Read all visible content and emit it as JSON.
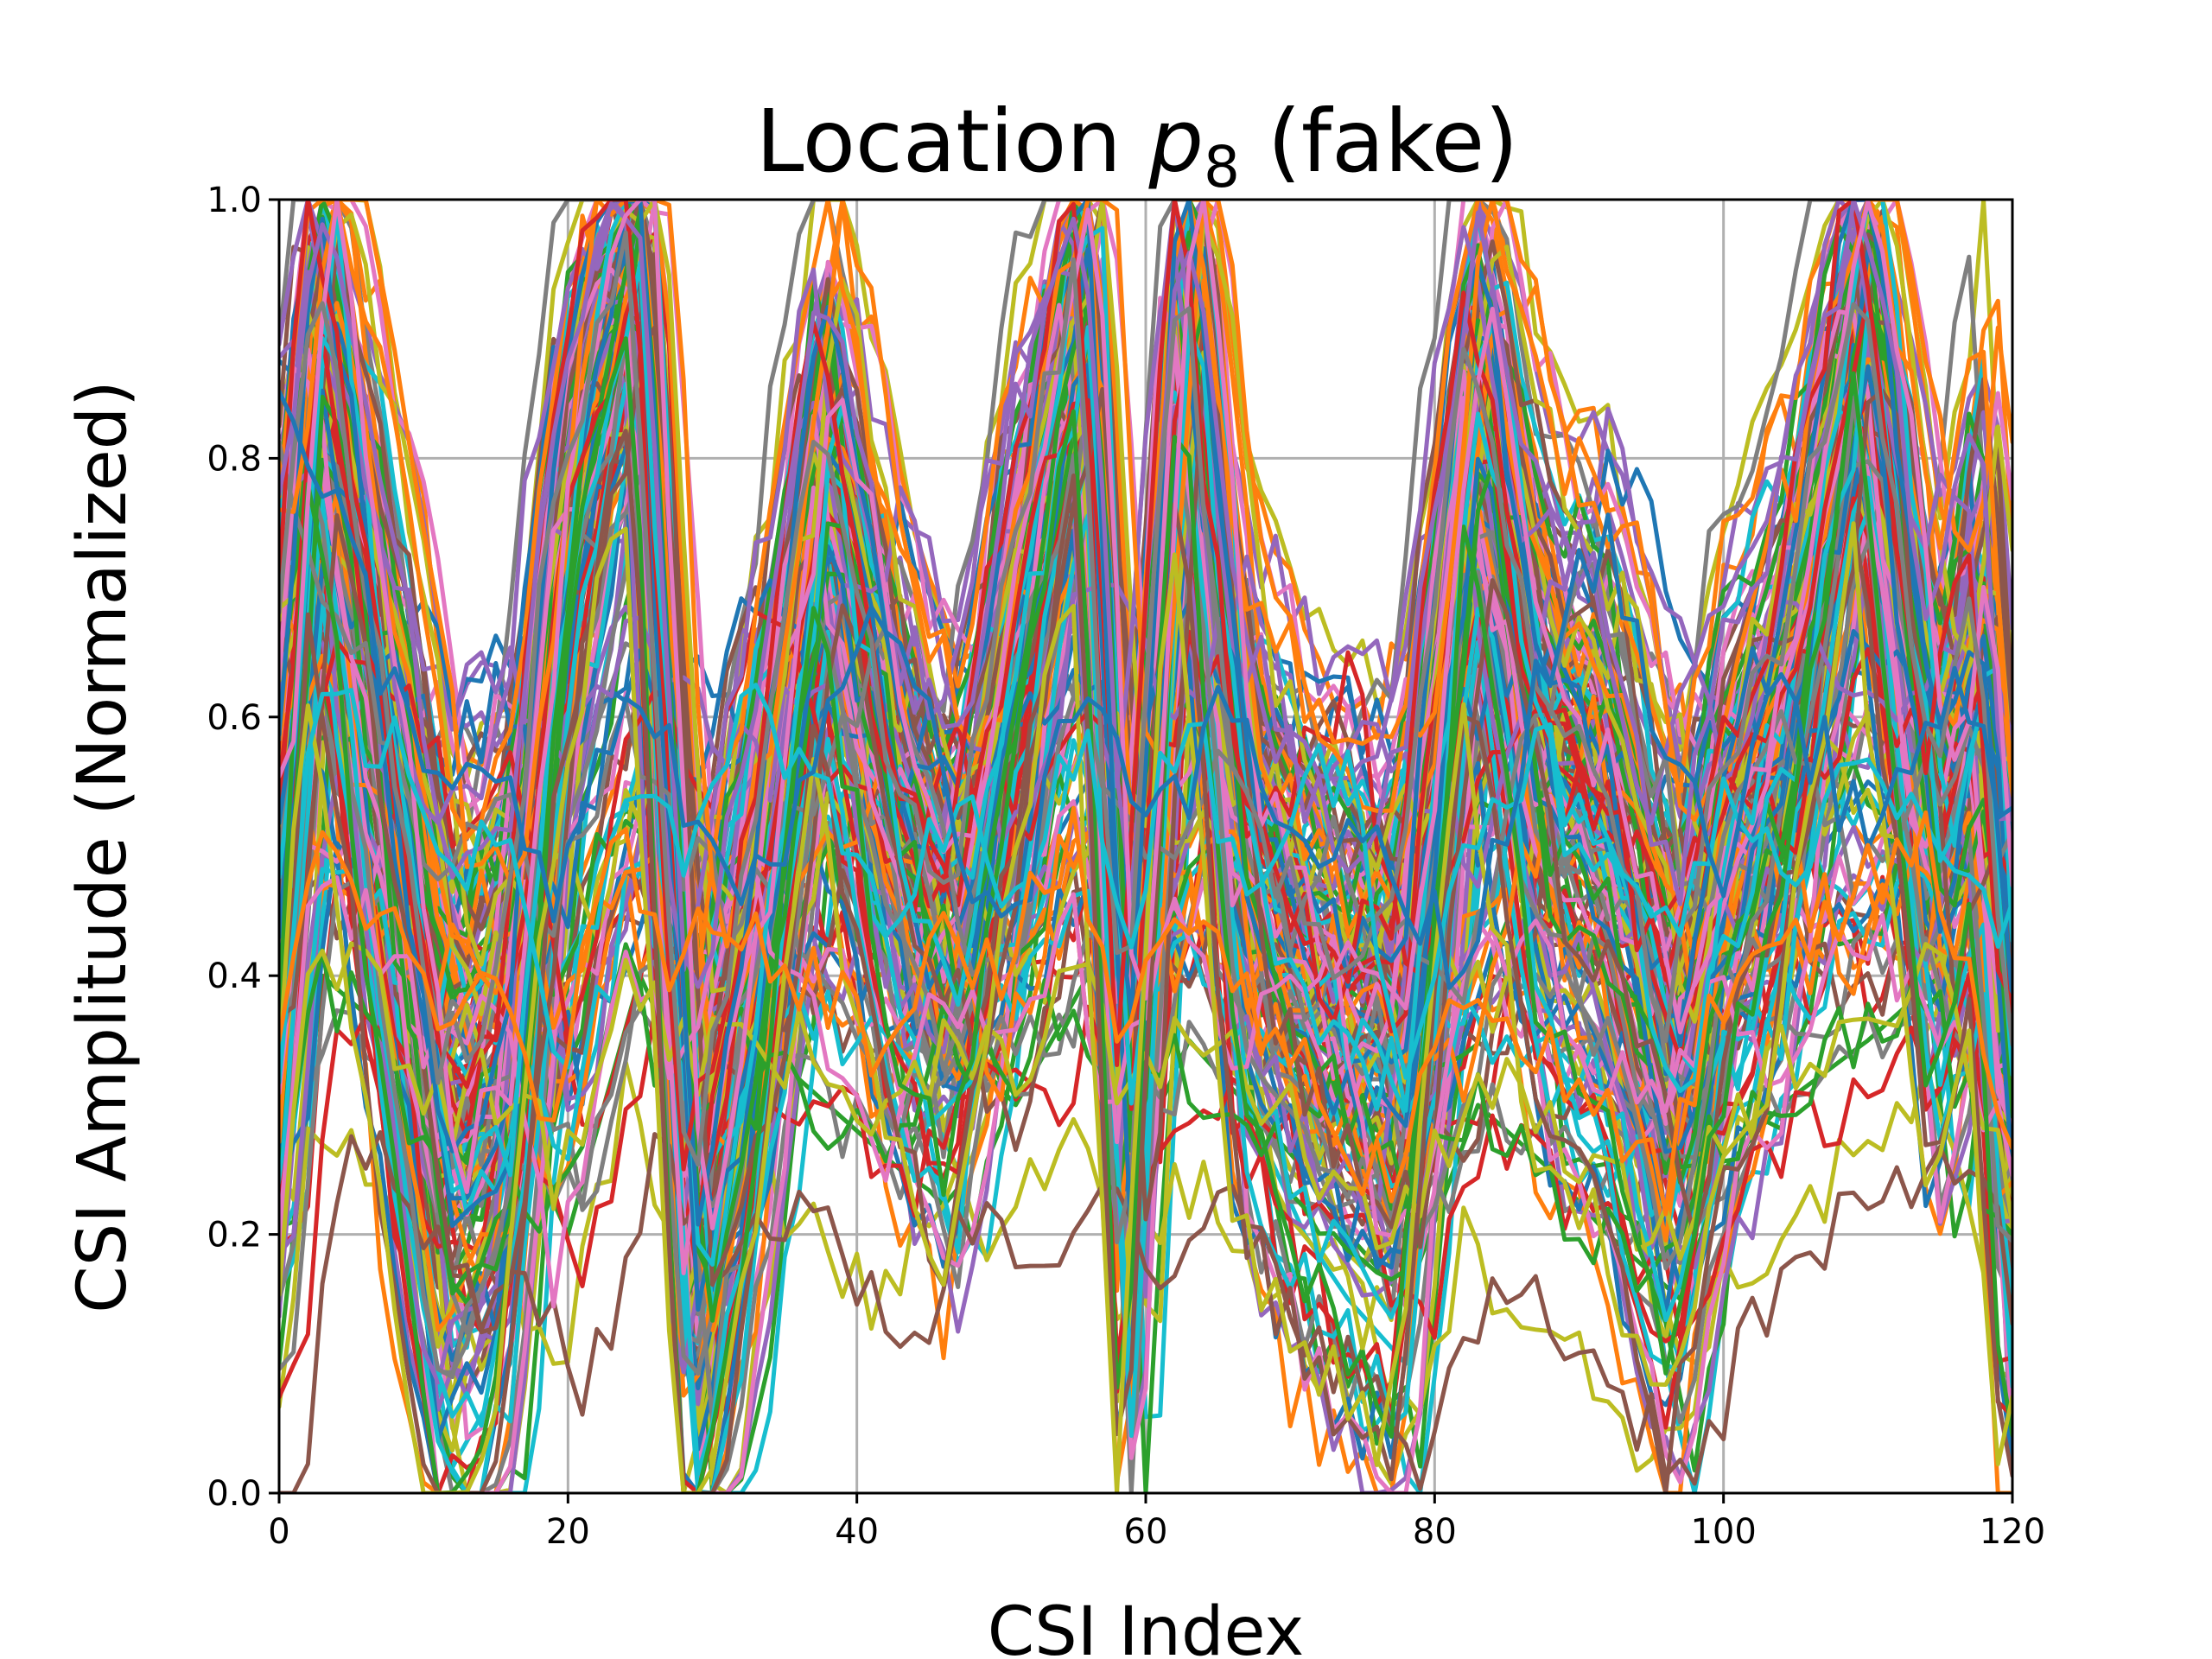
{
  "chart_data": {
    "type": "line",
    "title_prefix": "Location ",
    "title_var": "p",
    "title_sub": "8",
    "title_suffix": " (fake)",
    "xlabel": "CSI Index",
    "ylabel": "CSI Amplitude (Normalized)",
    "xlim": [
      0,
      120
    ],
    "ylim": [
      0.0,
      1.0
    ],
    "x_ticks": [
      "0",
      "20",
      "40",
      "60",
      "80",
      "100",
      "120"
    ],
    "y_ticks": [
      "0.0",
      "0.2",
      "0.4",
      "0.6",
      "0.8",
      "1.0"
    ],
    "grid": true,
    "legend": "none",
    "series_palette": [
      "#1f77b4",
      "#ff7f0e",
      "#2ca02c",
      "#d62728",
      "#9467bd",
      "#8c564b",
      "#e377c2",
      "#7f7f7f",
      "#bcbd22",
      "#17becf"
    ],
    "profile_x": [
      0,
      3,
      8,
      12,
      16,
      20,
      25,
      29,
      33,
      38,
      43,
      47,
      51,
      56,
      59,
      63,
      67,
      71,
      74,
      78,
      83,
      88,
      92,
      97,
      100,
      104,
      110,
      115,
      118,
      120
    ],
    "series": [
      {
        "values": [
          0.55,
          0.97,
          0.6,
          0.3,
          0.35,
          0.8,
          0.98,
          0.2,
          0.45,
          0.85,
          0.55,
          0.45,
          0.7,
          0.95,
          0.3,
          0.98,
          0.55,
          0.45,
          0.4,
          0.4,
          0.92,
          0.6,
          0.55,
          0.35,
          0.5,
          0.6,
          0.95,
          0.55,
          0.7,
          0.35
        ]
      },
      {
        "values": [
          0.4,
          0.9,
          0.45,
          0.15,
          0.25,
          0.75,
          0.97,
          0.1,
          0.35,
          0.8,
          0.5,
          0.4,
          0.65,
          0.92,
          0.2,
          0.95,
          0.45,
          0.35,
          0.3,
          0.3,
          0.85,
          0.5,
          0.45,
          0.25,
          0.45,
          0.55,
          0.92,
          0.45,
          0.6,
          0.25
        ]
      },
      {
        "values": [
          0.65,
          0.99,
          0.7,
          0.4,
          0.45,
          0.85,
          0.99,
          0.3,
          0.55,
          0.9,
          0.6,
          0.5,
          0.75,
          0.97,
          0.4,
          0.99,
          0.6,
          0.5,
          0.45,
          0.5,
          0.95,
          0.7,
          0.65,
          0.4,
          0.6,
          0.7,
          0.98,
          0.6,
          0.8,
          0.45
        ]
      },
      {
        "values": [
          0.35,
          0.85,
          0.4,
          0.1,
          0.2,
          0.7,
          0.95,
          0.05,
          0.3,
          0.75,
          0.45,
          0.35,
          0.6,
          0.9,
          0.15,
          0.93,
          0.4,
          0.3,
          0.25,
          0.2,
          0.8,
          0.45,
          0.4,
          0.2,
          0.4,
          0.5,
          0.9,
          0.4,
          0.55,
          0.2
        ]
      },
      {
        "values": [
          0.5,
          0.95,
          0.55,
          0.25,
          0.3,
          0.78,
          0.98,
          0.15,
          0.4,
          0.82,
          0.52,
          0.42,
          0.68,
          0.94,
          0.25,
          0.97,
          0.5,
          0.4,
          0.35,
          0.35,
          0.88,
          0.55,
          0.5,
          0.3,
          0.48,
          0.58,
          0.94,
          0.5,
          0.65,
          0.3
        ]
      },
      {
        "values": [
          0.7,
          0.99,
          0.75,
          0.45,
          0.5,
          0.88,
          0.99,
          0.35,
          0.6,
          0.92,
          0.65,
          0.55,
          0.8,
          0.98,
          0.45,
          0.99,
          0.65,
          0.55,
          0.5,
          0.55,
          0.96,
          0.75,
          0.7,
          0.45,
          0.65,
          0.75,
          0.99,
          0.65,
          0.85,
          0.5
        ]
      },
      {
        "values": [
          0.3,
          0.8,
          0.35,
          0.05,
          0.15,
          0.65,
          0.93,
          0.02,
          0.25,
          0.7,
          0.4,
          0.3,
          0.55,
          0.88,
          0.1,
          0.9,
          0.35,
          0.25,
          0.2,
          0.15,
          0.75,
          0.4,
          0.35,
          0.15,
          0.35,
          0.45,
          0.88,
          0.35,
          0.5,
          0.15
        ]
      },
      {
        "values": [
          0.45,
          0.92,
          0.5,
          0.2,
          0.28,
          0.76,
          0.97,
          0.12,
          0.38,
          0.8,
          0.5,
          0.4,
          0.66,
          0.93,
          0.22,
          0.96,
          0.48,
          0.38,
          0.32,
          0.32,
          0.86,
          0.52,
          0.48,
          0.28,
          0.46,
          0.56,
          0.93,
          0.48,
          0.62,
          0.28
        ]
      },
      {
        "values": [
          0.6,
          0.98,
          0.65,
          0.35,
          0.4,
          0.82,
          0.99,
          0.25,
          0.5,
          0.88,
          0.58,
          0.48,
          0.72,
          0.96,
          0.35,
          0.98,
          0.58,
          0.48,
          0.42,
          0.45,
          0.93,
          0.65,
          0.6,
          0.38,
          0.55,
          0.65,
          0.97,
          0.58,
          0.75,
          0.4
        ]
      },
      {
        "values": [
          0.25,
          0.75,
          0.3,
          0.02,
          0.1,
          0.6,
          0.9,
          0.01,
          0.2,
          0.65,
          0.35,
          0.25,
          0.5,
          0.85,
          0.05,
          0.88,
          0.3,
          0.2,
          0.15,
          0.1,
          0.7,
          0.35,
          0.3,
          0.1,
          0.3,
          0.4,
          0.85,
          0.3,
          0.45,
          0.1
        ]
      },
      {
        "values": [
          0.2,
          0.6,
          0.55,
          0.45,
          0.5,
          0.3,
          0.55,
          0.45,
          0.6,
          0.5,
          0.4,
          0.5,
          0.45,
          0.55,
          0.4,
          0.6,
          0.45,
          0.5,
          0.55,
          0.3,
          0.5,
          0.55,
          0.45,
          0.4,
          0.5,
          0.45,
          0.55,
          0.5,
          0.45,
          0.4
        ]
      },
      {
        "values": [
          0.8,
          0.75,
          0.6,
          0.5,
          0.55,
          0.45,
          0.6,
          0.5,
          0.45,
          0.55,
          0.65,
          0.5,
          0.4,
          0.6,
          0.55,
          0.5,
          0.6,
          0.45,
          0.5,
          0.45,
          0.4,
          0.6,
          0.7,
          0.55,
          0.45,
          0.6,
          0.5,
          0.55,
          0.6,
          0.5
        ]
      },
      {
        "values": [
          0.1,
          0.4,
          0.35,
          0.25,
          0.3,
          0.2,
          0.4,
          0.3,
          0.35,
          0.3,
          0.25,
          0.35,
          0.3,
          0.4,
          0.25,
          0.35,
          0.3,
          0.25,
          0.2,
          0.15,
          0.3,
          0.25,
          0.2,
          0.15,
          0.25,
          0.3,
          0.35,
          0.4,
          0.3,
          0.2
        ]
      }
    ]
  }
}
